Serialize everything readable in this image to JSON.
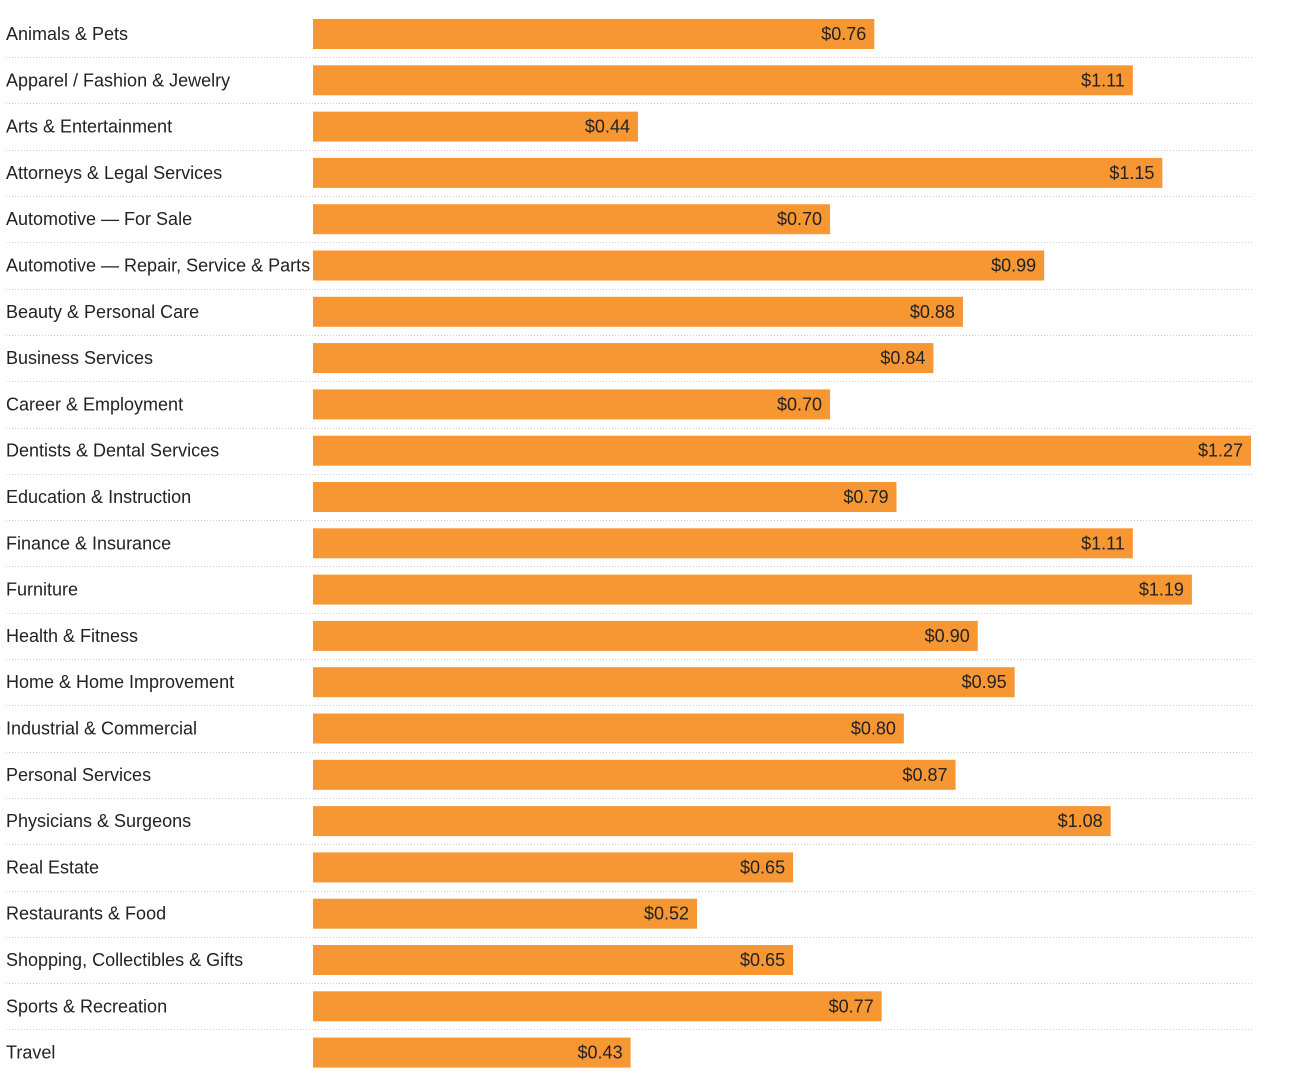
{
  "chart_data": {
    "type": "bar",
    "orientation": "horizontal",
    "value_prefix": "$",
    "categories": [
      "Animals & Pets",
      "Apparel / Fashion & Jewelry",
      "Arts & Entertainment",
      "Attorneys & Legal Services",
      "Automotive — For Sale",
      "Automotive — Repair, Service & Parts",
      "Beauty & Personal Care",
      "Business Services",
      "Career & Employment",
      "Dentists & Dental Services",
      "Education & Instruction",
      "Finance & Insurance",
      "Furniture",
      "Health & Fitness",
      "Home & Home Improvement",
      "Industrial & Commercial",
      "Personal Services",
      "Physicians & Surgeons",
      "Real Estate",
      "Restaurants & Food",
      "Shopping, Collectibles & Gifts",
      "Sports & Recreation",
      "Travel"
    ],
    "values": [
      0.76,
      1.11,
      0.44,
      1.15,
      0.7,
      0.99,
      0.88,
      0.84,
      0.7,
      1.27,
      0.79,
      1.11,
      1.19,
      0.9,
      0.95,
      0.8,
      0.87,
      1.08,
      0.65,
      0.52,
      0.65,
      0.77,
      0.43
    ],
    "value_labels": [
      "$0.76",
      "$1.11",
      "$0.44",
      "$1.15",
      "$0.70",
      "$0.99",
      "$0.88",
      "$0.84",
      "$0.70",
      "$1.27",
      "$0.79",
      "$1.11",
      "$1.19",
      "$0.90",
      "$0.95",
      "$0.80",
      "$0.87",
      "$1.08",
      "$0.65",
      "$0.52",
      "$0.65",
      "$0.77",
      "$0.43"
    ],
    "xlim": [
      0,
      1.27
    ],
    "grid": false,
    "bar_color": "#f79734",
    "text_color": "#222222",
    "separator_color": "#cfcfcf"
  }
}
